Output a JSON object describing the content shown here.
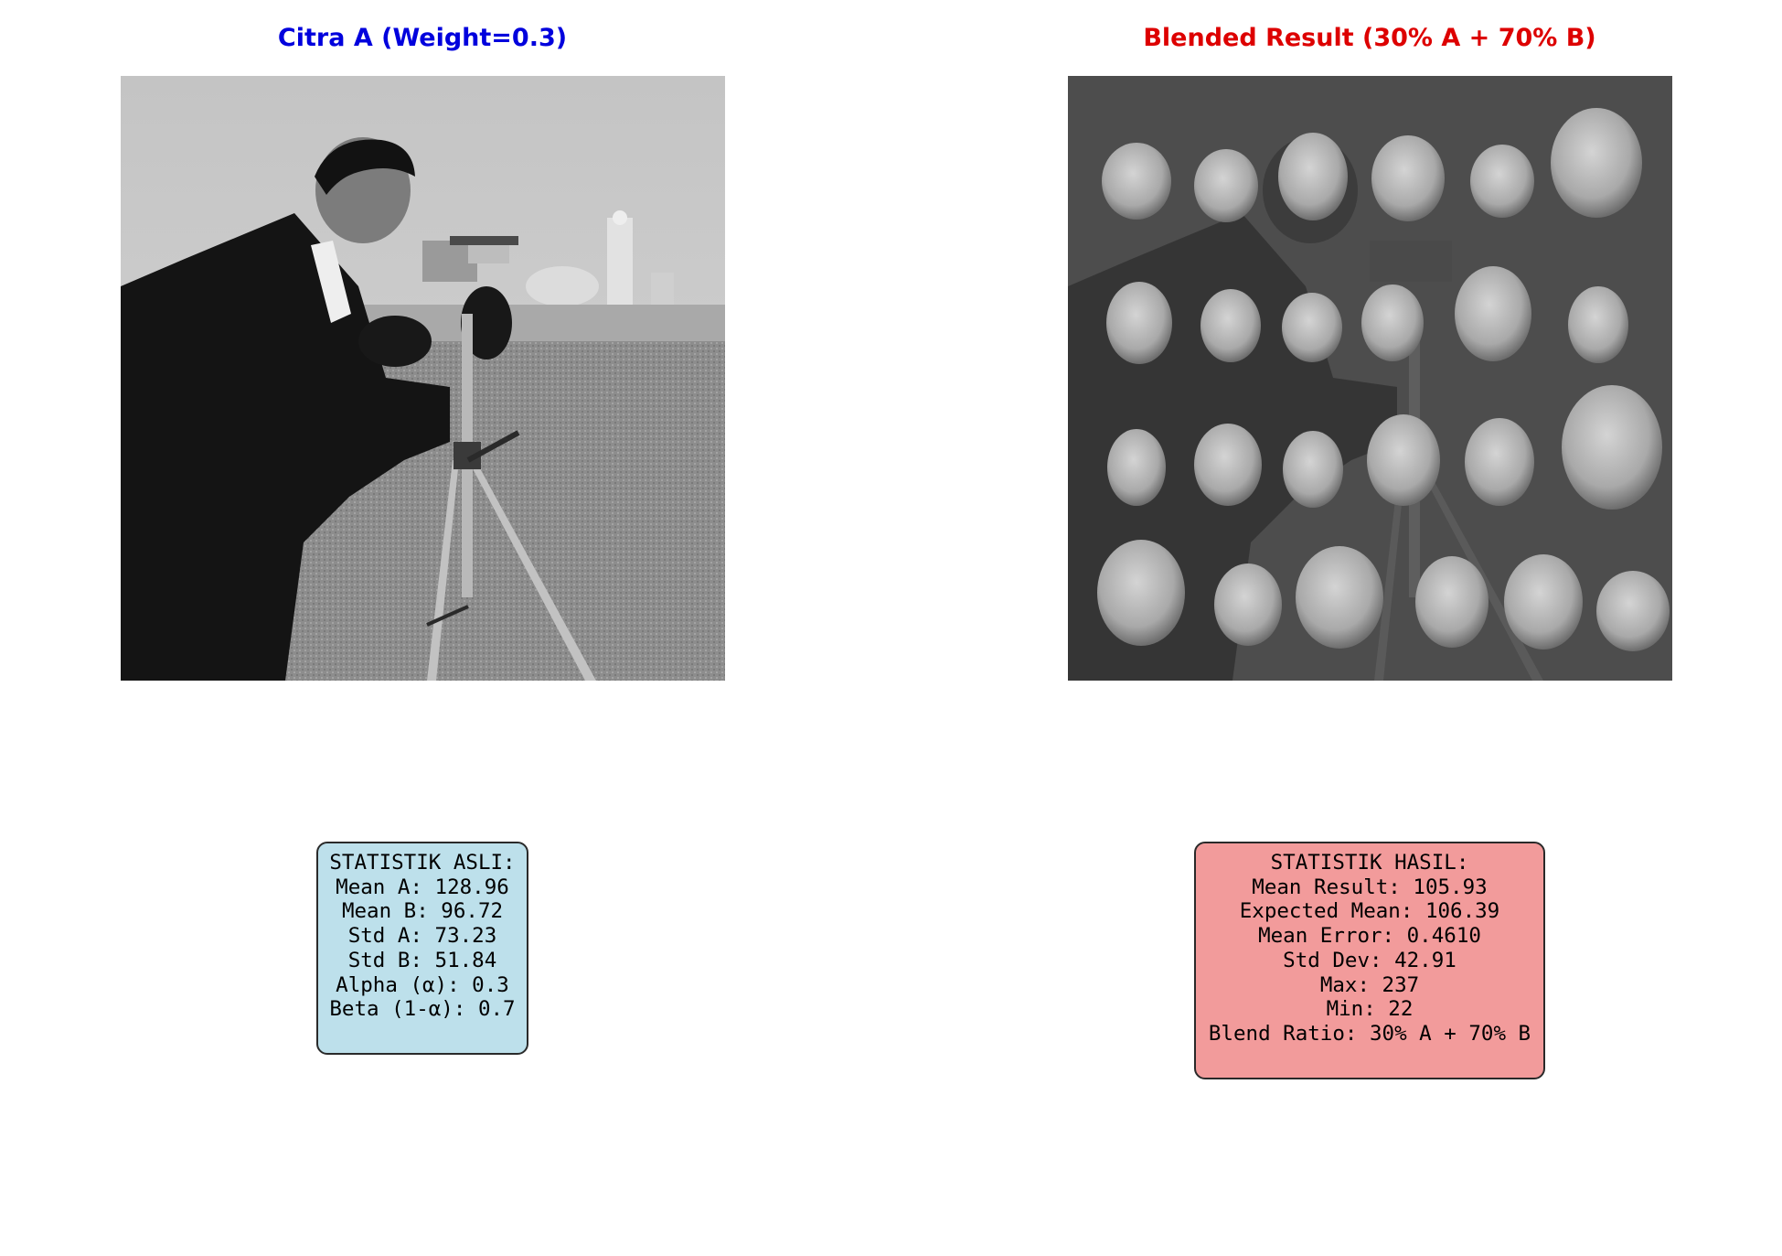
{
  "left_panel": {
    "title": "Citra A (Weight=0.3)",
    "title_color": "#0000dd",
    "image_description_icon": "cameraman-photo"
  },
  "right_panel": {
    "title": "Blended Result (30% A + 70% B)",
    "title_color": "#dd0000",
    "image_description_icon": "blended-coins-cameraman-photo"
  },
  "stats_original": {
    "box_color": "#bde0eb",
    "lines": [
      "STATISTIK ASLI:",
      "Mean A: 128.96",
      "Mean B: 96.72",
      "Std A: 73.23",
      "Std B: 51.84",
      "Alpha (α): 0.3",
      "Beta (1-α): 0.7"
    ]
  },
  "stats_result": {
    "box_color": "#f29b9b",
    "lines": [
      "STATISTIK HASIL:",
      "Mean Result: 105.93",
      "Expected Mean: 106.39",
      "Mean Error: 0.4610",
      "Std Dev: 42.91",
      "Max: 237",
      "Min: 22",
      "Blend Ratio: 30% A + 70% B"
    ]
  }
}
